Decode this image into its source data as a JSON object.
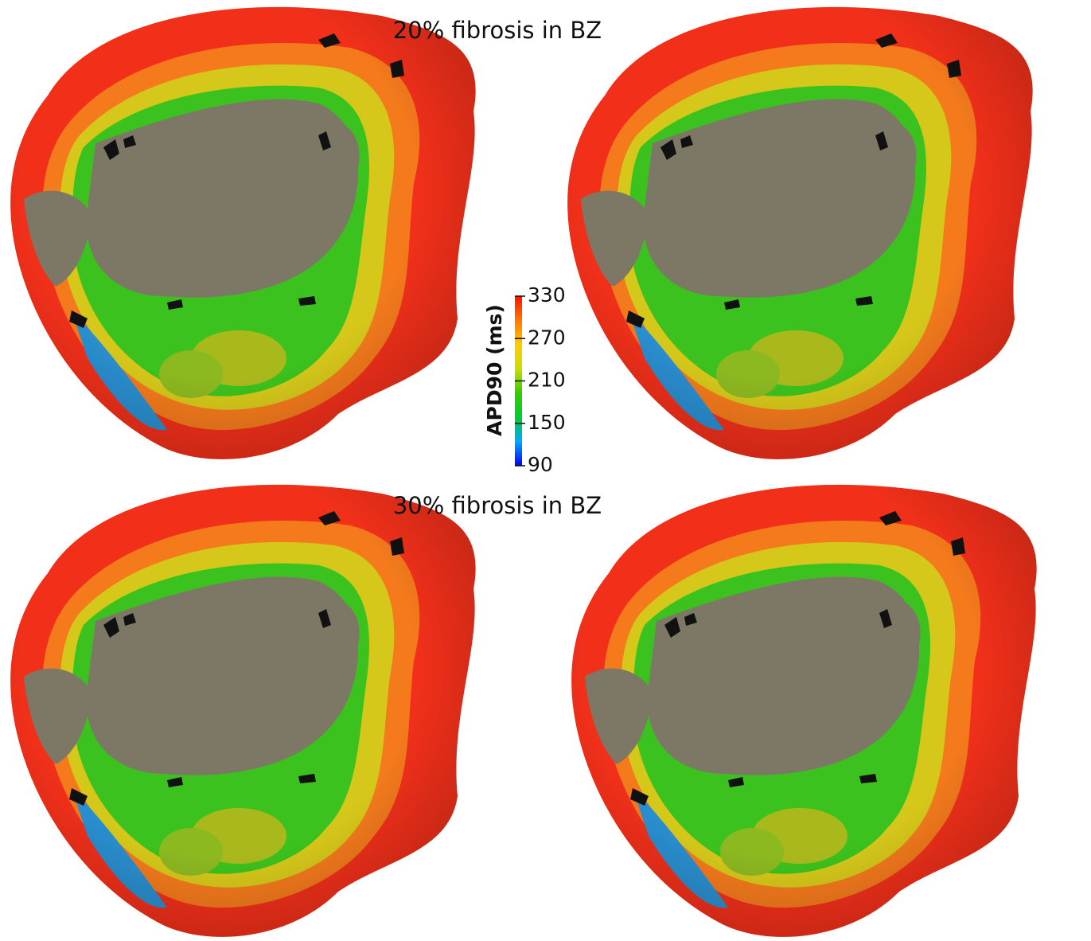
{
  "panels": [
    {
      "title": "20% fibrosis in BZ"
    },
    {
      "title": "30% fibrosis in BZ"
    }
  ],
  "colorbar": {
    "label": "APD90 (ms)",
    "range": [
      90,
      330
    ],
    "ticks": [
      90,
      150,
      210,
      270,
      330
    ],
    "colors": [
      "#0000ff",
      "#00aaff",
      "#00cc33",
      "#33cc00",
      "#ccdd00",
      "#ffcc00",
      "#ff7700",
      "#ff1100"
    ]
  }
}
